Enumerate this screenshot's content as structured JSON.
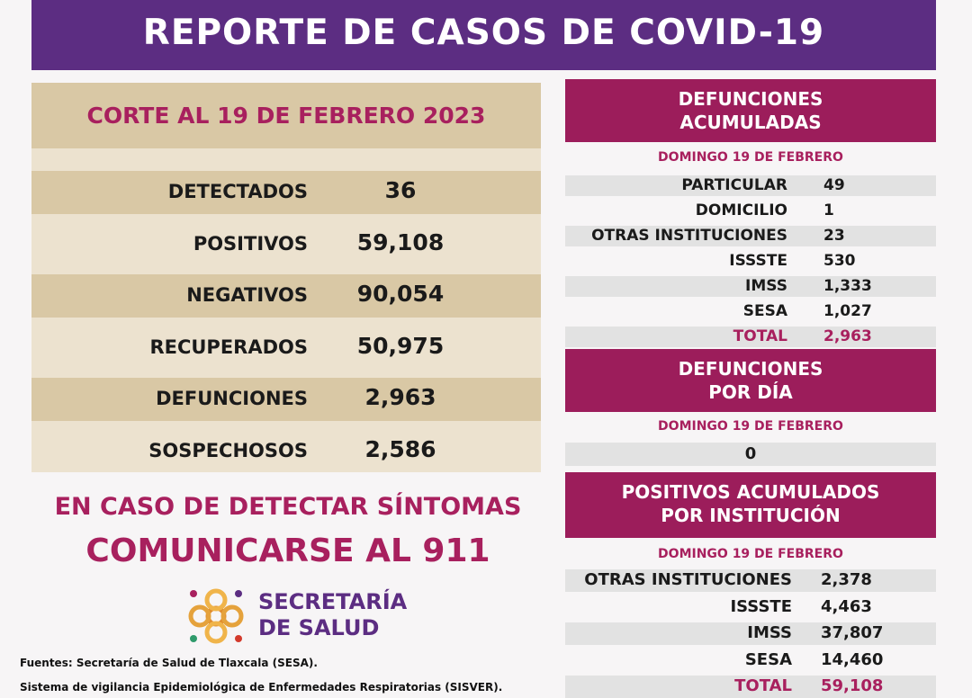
{
  "header": {
    "title": "REPORTE DE CASOS DE COVID-19"
  },
  "summary": {
    "title": "CORTE AL 19 DE FEBRERO 2023",
    "rows": [
      [
        "DETECTADOS",
        "36"
      ],
      [
        "POSITIVOS",
        "59,108"
      ],
      [
        "NEGATIVOS",
        "90,054"
      ],
      [
        "RECUPERADOS",
        "50,975"
      ],
      [
        "DEFUNCIONES",
        "2,963"
      ],
      [
        "SOSPECHOSOS",
        "2,586"
      ]
    ]
  },
  "deaths_cumulative": {
    "title_lines": [
      "DEFUNCIONES",
      "ACUMULADAS"
    ],
    "date": "DOMINGO 19 DE FEBRERO",
    "rows": [
      [
        "PARTICULAR",
        "49"
      ],
      [
        "DOMICILIO",
        "1"
      ],
      [
        "OTRAS INSTITUCIONES",
        "23"
      ],
      [
        "ISSSTE",
        "530"
      ],
      [
        "IMSS",
        "1,333"
      ],
      [
        "SESA",
        "1,027"
      ]
    ],
    "total": [
      "TOTAL",
      "2,963"
    ]
  },
  "deaths_daily": {
    "title_lines": [
      "DEFUNCIONES",
      "POR DÍA"
    ],
    "date": "DOMINGO 19 DE FEBRERO",
    "value": "0"
  },
  "positives_by_institution": {
    "title_lines": [
      "POSITIVOS ACUMULADOS",
      "POR INSTITUCIÓN"
    ],
    "date": "DOMINGO 19 DE FEBRERO",
    "rows": [
      [
        "OTRAS INSTITUCIONES",
        "2,378"
      ],
      [
        "ISSSTE",
        "4,463"
      ],
      [
        "IMSS",
        "37,807"
      ],
      [
        "SESA",
        "14,460"
      ]
    ],
    "total": [
      "TOTAL",
      "59,108"
    ]
  },
  "notice": {
    "line1": "EN CASO DE DETECTAR SÍNTOMAS",
    "line2": "COMUNICARSE AL 911"
  },
  "logo": {
    "line1": "SECRETARÍA",
    "line2": "DE SALUD"
  },
  "footer": {
    "line1": "Fuentes:  Secretaría de Salud de Tlaxcala (SESA).",
    "line2": "Sistema de vigilancia Epidemiológica de Enfermedades Respiratorias (SISVER)."
  }
}
